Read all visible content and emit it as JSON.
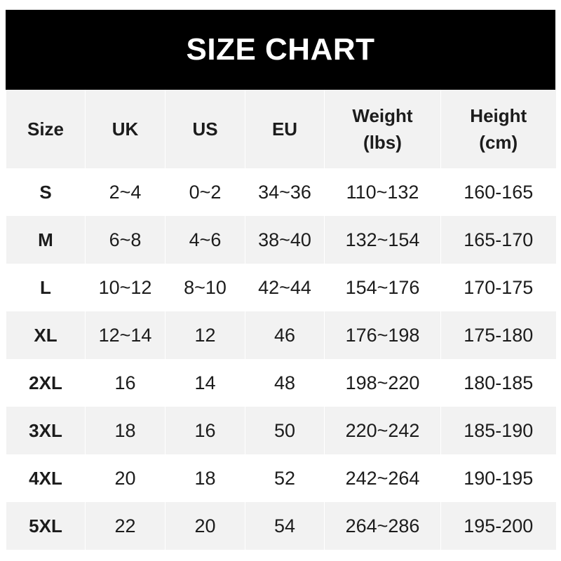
{
  "title": "SIZE CHART",
  "headers": [
    "Size",
    "UK",
    "US",
    "EU",
    "Weight\n(lbs)",
    "Height\n(cm)"
  ],
  "header_lines": {
    "weight": [
      "Weight",
      "(lbs)"
    ],
    "height": [
      "Height",
      "(cm)"
    ]
  },
  "rows": [
    [
      "S",
      "2~4",
      "0~2",
      "34~36",
      "110~132",
      "160-165"
    ],
    [
      "M",
      "6~8",
      "4~6",
      "38~40",
      "132~154",
      "165-170"
    ],
    [
      "L",
      "10~12",
      "8~10",
      "42~44",
      "154~176",
      "170-175"
    ],
    [
      "XL",
      "12~14",
      "12",
      "46",
      "176~198",
      "175-180"
    ],
    [
      "2XL",
      "16",
      "14",
      "48",
      "198~220",
      "180-185"
    ],
    [
      "3XL",
      "18",
      "16",
      "50",
      "220~242",
      "185-190"
    ],
    [
      "4XL",
      "20",
      "18",
      "52",
      "242~264",
      "190-195"
    ],
    [
      "5XL",
      "22",
      "20",
      "54",
      "264~286",
      "195-200"
    ]
  ],
  "colors": {
    "header_bg": "#000000",
    "stripe": "#f2f2f2",
    "text": "#1c1c1c"
  }
}
